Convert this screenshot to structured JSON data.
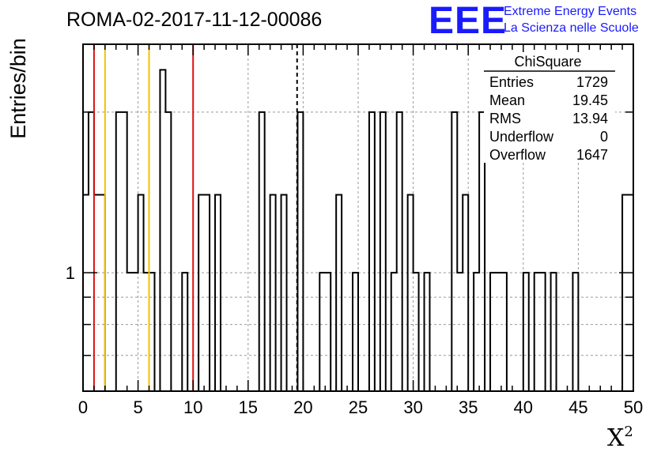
{
  "chart_data": {
    "type": "histogram",
    "title": "ROMA-02-2017-11-12-00086",
    "xlabel": "X",
    "xlabel_superscript": "2",
    "ylabel": "Entries/bin",
    "xlim": [
      0,
      50
    ],
    "ylim": [
      0.6,
      2.68
    ],
    "y_scale": "log",
    "grid": true,
    "x_ticks": [
      "0",
      "5",
      "10",
      "15",
      "20",
      "25",
      "30",
      "35",
      "40",
      "45",
      "50"
    ],
    "y_ticks": [
      "1"
    ],
    "bin_width": 0.5,
    "bins": [
      {
        "x": 0.0,
        "count": 1.4
      },
      {
        "x": 0.5,
        "count": 2.0
      },
      {
        "x": 1.0,
        "count": 1.4
      },
      {
        "x": 1.5,
        "count": 1.4
      },
      {
        "x": 2.0,
        "count": 0
      },
      {
        "x": 2.5,
        "count": 0
      },
      {
        "x": 3.0,
        "count": 2.0
      },
      {
        "x": 3.5,
        "count": 2.0
      },
      {
        "x": 4.0,
        "count": 1.0
      },
      {
        "x": 4.5,
        "count": 1.0
      },
      {
        "x": 5.0,
        "count": 1.4
      },
      {
        "x": 5.5,
        "count": 1.0
      },
      {
        "x": 6.0,
        "count": 1.0
      },
      {
        "x": 6.5,
        "count": 0
      },
      {
        "x": 7.0,
        "count": 2.4
      },
      {
        "x": 7.5,
        "count": 2.0
      },
      {
        "x": 8.0,
        "count": 0
      },
      {
        "x": 8.5,
        "count": 0
      },
      {
        "x": 9.0,
        "count": 1.0
      },
      {
        "x": 9.5,
        "count": 0
      },
      {
        "x": 10.0,
        "count": 0
      },
      {
        "x": 10.5,
        "count": 1.4
      },
      {
        "x": 11.0,
        "count": 1.4
      },
      {
        "x": 11.5,
        "count": 0
      },
      {
        "x": 12.0,
        "count": 1.4
      },
      {
        "x": 12.5,
        "count": 0
      },
      {
        "x": 13.0,
        "count": 0
      },
      {
        "x": 13.5,
        "count": 0
      },
      {
        "x": 14.0,
        "count": 0
      },
      {
        "x": 14.5,
        "count": 0
      },
      {
        "x": 15.0,
        "count": 0
      },
      {
        "x": 15.5,
        "count": 0
      },
      {
        "x": 16.0,
        "count": 2.0
      },
      {
        "x": 16.5,
        "count": 0
      },
      {
        "x": 17.0,
        "count": 1.4
      },
      {
        "x": 17.5,
        "count": 0
      },
      {
        "x": 18.0,
        "count": 1.4
      },
      {
        "x": 18.5,
        "count": 0
      },
      {
        "x": 19.0,
        "count": 0
      },
      {
        "x": 19.5,
        "count": 2.0
      },
      {
        "x": 20.0,
        "count": 0
      },
      {
        "x": 20.5,
        "count": 0
      },
      {
        "x": 21.0,
        "count": 0
      },
      {
        "x": 21.5,
        "count": 1.0
      },
      {
        "x": 22.0,
        "count": 1.0
      },
      {
        "x": 22.5,
        "count": 0
      },
      {
        "x": 23.0,
        "count": 1.4
      },
      {
        "x": 23.5,
        "count": 0
      },
      {
        "x": 24.0,
        "count": 0
      },
      {
        "x": 24.5,
        "count": 1.0
      },
      {
        "x": 25.0,
        "count": 0
      },
      {
        "x": 25.5,
        "count": 0
      },
      {
        "x": 26.0,
        "count": 2.0
      },
      {
        "x": 26.5,
        "count": 0
      },
      {
        "x": 27.0,
        "count": 2.0
      },
      {
        "x": 27.5,
        "count": 0
      },
      {
        "x": 28.0,
        "count": 1.0
      },
      {
        "x": 28.5,
        "count": 2.0
      },
      {
        "x": 29.0,
        "count": 0
      },
      {
        "x": 29.5,
        "count": 1.4
      },
      {
        "x": 30.0,
        "count": 1.0
      },
      {
        "x": 30.5,
        "count": 0
      },
      {
        "x": 31.0,
        "count": 1.0
      },
      {
        "x": 31.5,
        "count": 0
      },
      {
        "x": 32.0,
        "count": 0
      },
      {
        "x": 32.5,
        "count": 0
      },
      {
        "x": 33.0,
        "count": 0
      },
      {
        "x": 33.5,
        "count": 2.0
      },
      {
        "x": 34.0,
        "count": 1.0
      },
      {
        "x": 34.5,
        "count": 1.4
      },
      {
        "x": 35.0,
        "count": 0
      },
      {
        "x": 35.5,
        "count": 1.0
      },
      {
        "x": 36.0,
        "count": 2.0
      },
      {
        "x": 36.5,
        "count": 0
      },
      {
        "x": 37.0,
        "count": 1.0
      },
      {
        "x": 37.5,
        "count": 1.0
      },
      {
        "x": 38.0,
        "count": 1.0
      },
      {
        "x": 38.5,
        "count": 0
      },
      {
        "x": 39.0,
        "count": 0
      },
      {
        "x": 39.5,
        "count": 0
      },
      {
        "x": 40.0,
        "count": 1.0
      },
      {
        "x": 40.5,
        "count": 0
      },
      {
        "x": 41.0,
        "count": 1.0
      },
      {
        "x": 41.5,
        "count": 1.0
      },
      {
        "x": 42.0,
        "count": 0
      },
      {
        "x": 42.5,
        "count": 1.0
      },
      {
        "x": 43.0,
        "count": 0
      },
      {
        "x": 43.5,
        "count": 0
      },
      {
        "x": 44.0,
        "count": 0
      },
      {
        "x": 44.5,
        "count": 1.0
      },
      {
        "x": 45.0,
        "count": 0
      },
      {
        "x": 45.5,
        "count": 0
      },
      {
        "x": 46.0,
        "count": 0
      },
      {
        "x": 46.5,
        "count": 0
      },
      {
        "x": 47.0,
        "count": 0
      },
      {
        "x": 47.5,
        "count": 0
      },
      {
        "x": 48.0,
        "count": 0
      },
      {
        "x": 48.5,
        "count": 0
      },
      {
        "x": 49.0,
        "count": 1.4
      },
      {
        "x": 49.5,
        "count": 1.4
      }
    ],
    "reference_lines": [
      {
        "x": 1.0,
        "color": "#dd1111",
        "style": "solid"
      },
      {
        "x": 2.0,
        "color": "#f5c000",
        "style": "solid"
      },
      {
        "x": 6.0,
        "color": "#f5c000",
        "style": "solid"
      },
      {
        "x": 10.0,
        "color": "#dd1111",
        "style": "solid"
      },
      {
        "x": 19.45,
        "color": "#000000",
        "style": "dashed"
      }
    ]
  },
  "stats_box": {
    "title": "ChiSquare",
    "rows": [
      {
        "label": "Entries",
        "value": "1729"
      },
      {
        "label": "Mean",
        "value": "19.45"
      },
      {
        "label": "RMS",
        "value": "13.94"
      },
      {
        "label": "Underflow",
        "value": "0"
      },
      {
        "label": "Overflow",
        "value": "1647"
      }
    ]
  },
  "logo": {
    "mark": "EEE",
    "line1": "Extreme Energy Events",
    "line2": "La Scienza nelle Scuole",
    "color": "#1a1aff"
  }
}
